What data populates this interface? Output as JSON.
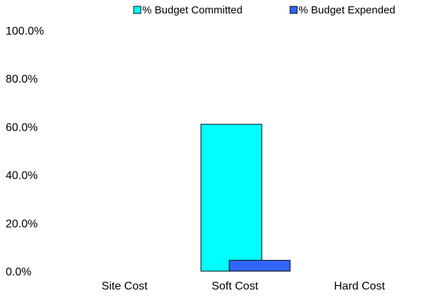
{
  "chart_data": {
    "type": "bar",
    "categories": [
      "Site Cost",
      "Soft Cost",
      "Hard Cost"
    ],
    "series": [
      {
        "name": "% Budget Committed",
        "values": [
          0,
          61.0,
          0
        ],
        "color": "#00FFFF"
      },
      {
        "name": "% Budget Expended",
        "values": [
          0,
          4.5,
          0
        ],
        "color": "#3366FF"
      }
    ],
    "ylim": [
      0,
      100
    ],
    "yticks": [
      0,
      20,
      40,
      60,
      80,
      100
    ],
    "ytick_labels": [
      "0.0%",
      "20.0%",
      "40.0%",
      "60.0%",
      "80.0%",
      "100.0%"
    ],
    "title": "",
    "xlabel": "",
    "ylabel": "",
    "grid": false,
    "legend": "top"
  }
}
